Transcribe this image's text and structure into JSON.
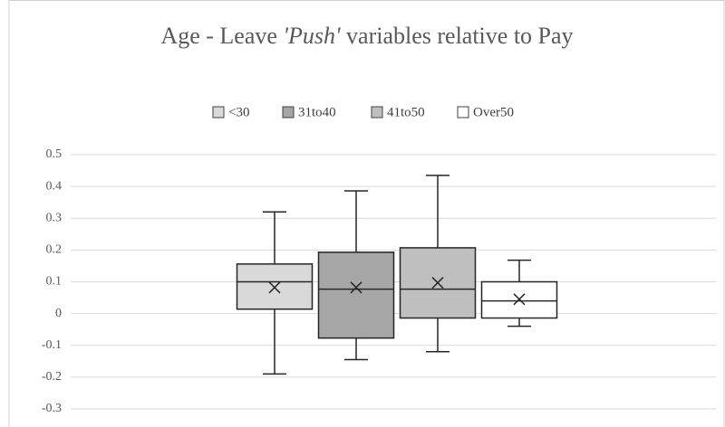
{
  "chart_data": {
    "type": "box",
    "title": [
      {
        "text": "Age - Leave "
      },
      {
        "text": "'Push'",
        "italic": true
      },
      {
        "text": " variables relative to Pay"
      }
    ],
    "ylim": [
      -0.3,
      0.5
    ],
    "yticks": [
      -0.3,
      -0.2,
      -0.1,
      0,
      0.1,
      0.2,
      0.3,
      0.4,
      0.5
    ],
    "grid": true,
    "legend": "top",
    "series": [
      {
        "name": "<30",
        "color": "#d9d9d9",
        "whisker_low": -0.19,
        "q1": 0.014,
        "median": 0.1,
        "q3": 0.156,
        "whisker_high": 0.32,
        "mean": 0.082
      },
      {
        "name": "31to40",
        "color": "#a6a6a6",
        "whisker_low": -0.145,
        "q1": -0.077,
        "median": 0.077,
        "q3": 0.193,
        "whisker_high": 0.386,
        "mean": 0.082
      },
      {
        "name": "41to50",
        "color": "#bfbfbf",
        "whisker_low": -0.12,
        "q1": -0.014,
        "median": 0.077,
        "q3": 0.207,
        "whisker_high": 0.435,
        "mean": 0.097
      },
      {
        "name": "Over50",
        "color": "#ffffff",
        "whisker_low": -0.04,
        "q1": -0.014,
        "median": 0.04,
        "q3": 0.1,
        "whisker_high": 0.168,
        "mean": 0.045
      }
    ]
  }
}
